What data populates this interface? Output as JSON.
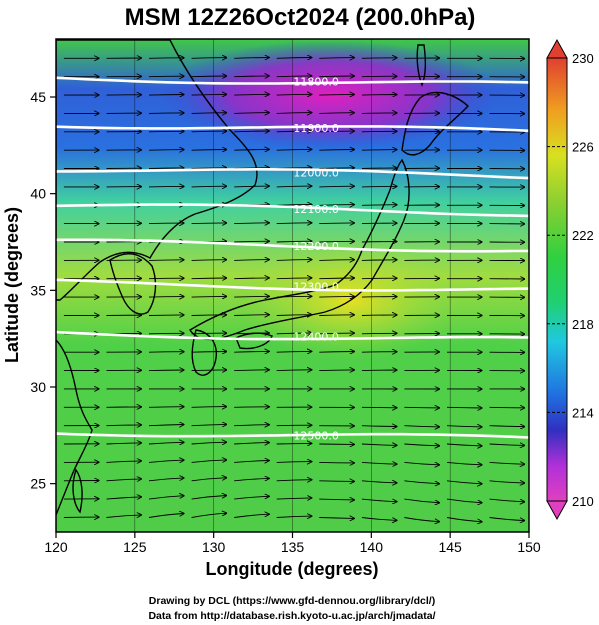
{
  "title": "MSM 12Z26Oct2024 (200.0hPa)",
  "map": {
    "lon_range": [
      120,
      150
    ],
    "lat_range": [
      22.5,
      48
    ],
    "x_ticks": [
      "120",
      "125",
      "130",
      "135",
      "140",
      "145",
      "150"
    ],
    "y_ticks": [
      "25",
      "30",
      "35",
      "40",
      "45"
    ],
    "xlabel": "Longitude (degrees)",
    "ylabel": "Latitude  (degrees)",
    "contours": [
      {
        "label": "11800.0",
        "lat": 45.8
      },
      {
        "label": "11900.0",
        "lat": 43.4
      },
      {
        "label": "12000.0",
        "lat": 41.1
      },
      {
        "label": "12100.0",
        "lat": 39.2
      },
      {
        "label": "12200.0",
        "lat": 37.3
      },
      {
        "label": "12300.0",
        "lat": 35.2
      },
      {
        "label": "12400.0",
        "lat": 32.6
      },
      {
        "label": "12500.0",
        "lat": 27.5
      }
    ]
  },
  "colorbar": {
    "ticks": [
      "230",
      "226",
      "222",
      "218",
      "214",
      "210"
    ],
    "min": 210,
    "max": 230,
    "colors": [
      "#e040c0",
      "#b030d8",
      "#3030c0",
      "#2070e0",
      "#20c8e0",
      "#20d070",
      "#40d040",
      "#90d030",
      "#d8e020",
      "#f0a020",
      "#e04030"
    ]
  },
  "credits": {
    "line1": "Drawing by DCL (https://www.gfd-dennou.org/library/dcl/)",
    "line2": "Data from http://database.rish.kyoto-u.ac.jp/arch/jmadata/"
  }
}
